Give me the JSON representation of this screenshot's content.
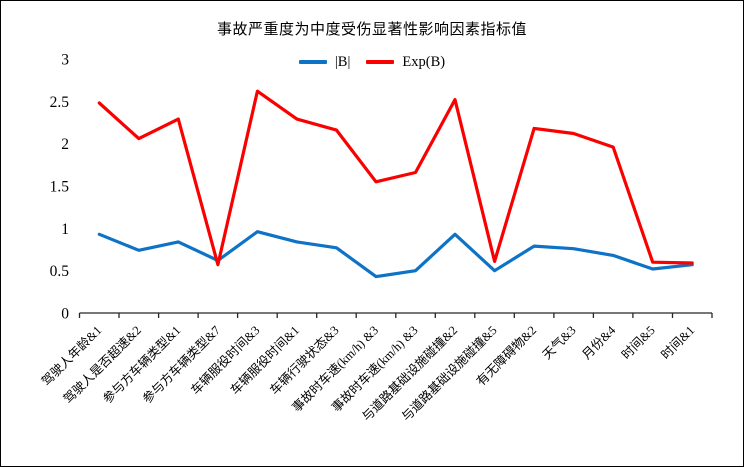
{
  "chart_data": {
    "type": "line",
    "title": "事故严重度为中度受伤显著性影响因素指标值",
    "legend_position": "top-center",
    "grid": false,
    "axis_color": "#262626",
    "ylim": [
      0,
      3
    ],
    "yticks": [
      0,
      0.5,
      1,
      1.5,
      2,
      2.5,
      3
    ],
    "ytick_labels": [
      "0",
      "0.5",
      "1",
      "1.5",
      "2",
      "2.5",
      "3"
    ],
    "xlabel": "",
    "ylabel": "",
    "categories": [
      "驾驶人年龄&1",
      "驾驶人是否超速&2",
      "参与方车辆类型&1",
      "参与方车辆类型&7",
      "车辆服役时间&3",
      "车辆服役时间&1",
      "车辆行驶状态&3",
      "事故时车速(km/h) &3",
      "事故时车速(km/h) &3",
      "与道路基础设施碰撞&2",
      "与道路基础设施碰撞&5",
      "有无障碍物&2",
      "天气&3",
      "月份&4",
      "时间&5",
      "时间&1"
    ],
    "series": [
      {
        "name": "|B|",
        "color": "#0E72C6",
        "values": [
          0.93,
          0.74,
          0.84,
          0.62,
          0.96,
          0.84,
          0.77,
          0.43,
          0.5,
          0.93,
          0.5,
          0.79,
          0.76,
          0.68,
          0.52,
          0.57
        ]
      },
      {
        "name": "Exp(B)",
        "color": "#FB0000",
        "values": [
          2.48,
          2.06,
          2.29,
          0.57,
          2.62,
          2.29,
          2.16,
          1.55,
          1.66,
          2.52,
          0.61,
          2.18,
          2.12,
          1.96,
          0.6,
          0.59
        ]
      }
    ]
  }
}
